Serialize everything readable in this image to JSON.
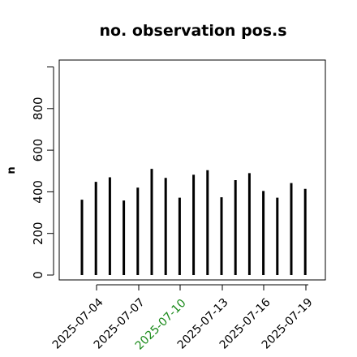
{
  "chart_data": {
    "type": "bar",
    "title": "no. observation pos.s",
    "xlabel": "",
    "ylabel": "n",
    "ylim": [
      0,
      1000
    ],
    "yticks": [
      0,
      200,
      400,
      600,
      800
    ],
    "grid": false,
    "x": [
      "2025-07-03",
      "2025-07-04",
      "2025-07-05",
      "2025-07-06",
      "2025-07-07",
      "2025-07-08",
      "2025-07-09",
      "2025-07-10",
      "2025-07-11",
      "2025-07-12",
      "2025-07-13",
      "2025-07-14",
      "2025-07-15",
      "2025-07-16",
      "2025-07-17",
      "2025-07-18",
      "2025-07-19",
      "2025-07-20"
    ],
    "values": [
      362,
      448,
      470,
      358,
      420,
      510,
      467,
      372,
      482,
      504,
      374,
      456,
      490,
      404,
      372,
      442,
      414,
      0
    ],
    "xtick_labels": [
      {
        "label": "2025-07-04",
        "color": "#000000"
      },
      {
        "label": "2025-07-07",
        "color": "#000000"
      },
      {
        "label": "2025-07-10",
        "color": "#1a8a1a"
      },
      {
        "label": "2025-07-13",
        "color": "#000000"
      },
      {
        "label": "2025-07-16",
        "color": "#000000"
      },
      {
        "label": "2025-07-19",
        "color": "#000000"
      }
    ],
    "bar_color": "#000000"
  }
}
